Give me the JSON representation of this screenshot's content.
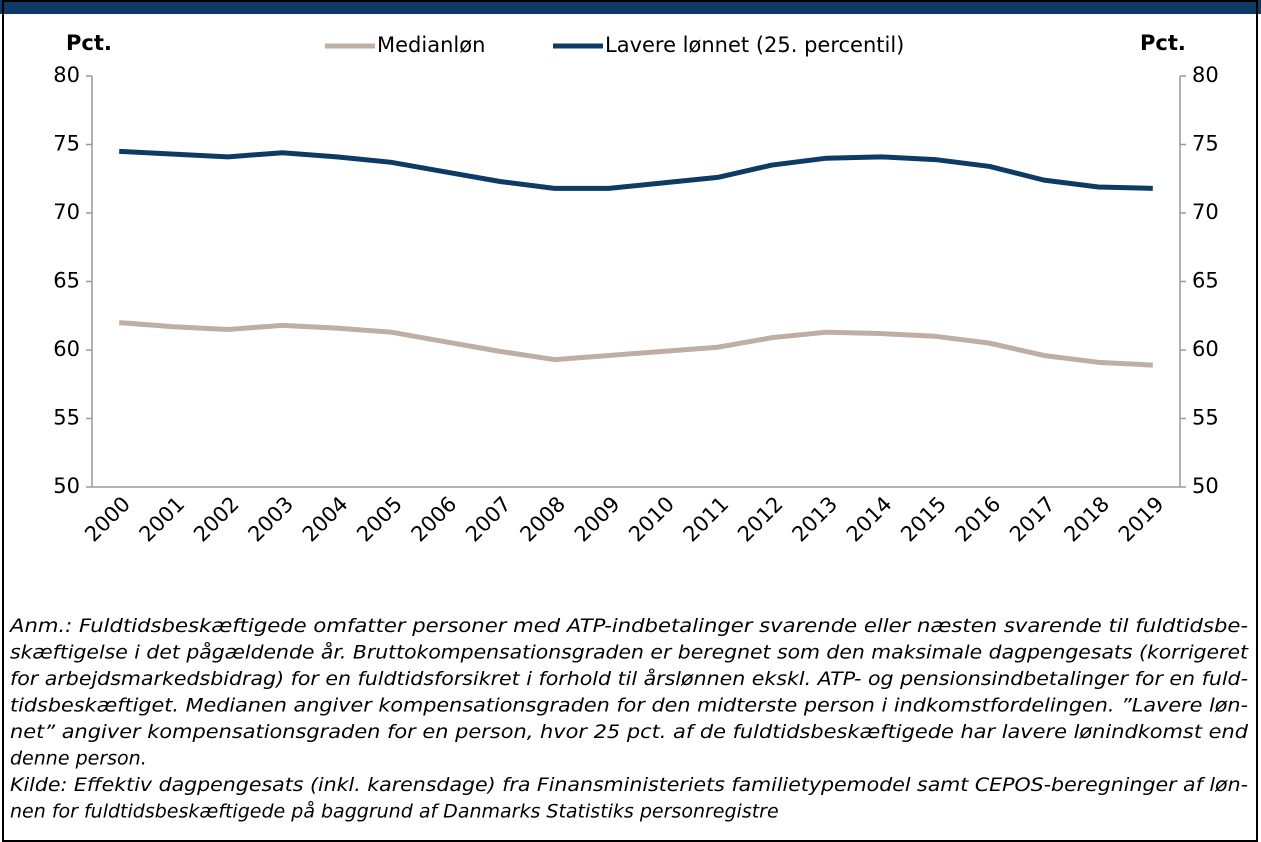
{
  "chart_data": {
    "type": "line",
    "y_label": "Pct.",
    "y2_label": "Pct.",
    "categories": [
      "2000",
      "2001",
      "2002",
      "2003",
      "2004",
      "2005",
      "2006",
      "2007",
      "2008",
      "2009",
      "2010",
      "2011",
      "2012",
      "2013",
      "2014",
      "2015",
      "2016",
      "2017",
      "2018",
      "2019"
    ],
    "series": [
      {
        "name": "Medianløn",
        "color": "#bfaea3",
        "values": [
          62.0,
          61.7,
          61.5,
          61.8,
          61.6,
          61.3,
          60.6,
          59.9,
          59.3,
          59.6,
          59.9,
          60.2,
          60.9,
          61.3,
          61.2,
          61.0,
          60.5,
          59.6,
          59.1,
          58.9
        ]
      },
      {
        "name": "Lavere lønnet (25. percentil)",
        "color": "#0d3b66",
        "values": [
          74.5,
          74.3,
          74.1,
          74.4,
          74.1,
          73.7,
          73.0,
          72.3,
          71.8,
          71.8,
          72.2,
          72.6,
          73.5,
          74.0,
          74.1,
          73.9,
          73.4,
          72.4,
          71.9,
          71.8
        ]
      }
    ],
    "ylim": [
      50,
      80
    ],
    "yticks": [
      50,
      55,
      60,
      65,
      70,
      75,
      80
    ],
    "y2lim": [
      50,
      80
    ],
    "y2ticks": [
      50,
      55,
      60,
      65,
      70,
      75,
      80
    ],
    "legend": "top",
    "notes": [
      "Anm.: Fuldtidsbeskæftigede omfatter personer med ATP-indbetalinger svarende eller næsten svarende til fuldtidsbe-",
      "skæftigelse i det pågældende år. Bruttokompensationsgraden er beregnet som den maksimale dagpengesats (korrigeret",
      "for arbejdsmarkedsbidrag) for en fuldtidsforsikret i forhold til årslønnen ekskl. ATP- og pensionsindbetalinger for en fuld-",
      "tidsbeskæftiget. Medianen angiver kompensationsgraden for den midterste person i indkomstfordelingen. ”Lavere løn-",
      "net” angiver kompensationsgraden for en person, hvor 25 pct. af de fuldtidsbeskæftigede har lavere lønindkomst end",
      "denne person.",
      "Kilde: Effektiv dagpengesats (inkl. karensdage) fra Finansministeriets familietypemodel samt CEPOS-beregninger af løn-",
      "nen for fuldtidsbeskæftigede på baggrund af Danmarks Statistiks personregistre"
    ]
  }
}
